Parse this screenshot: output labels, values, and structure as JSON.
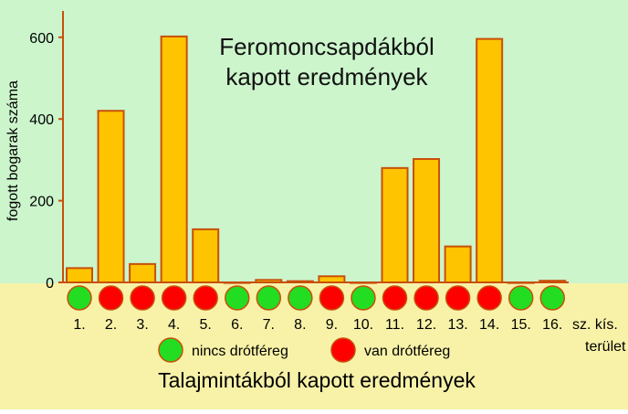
{
  "chart_data": {
    "type": "bar",
    "title": "Feromoncsapdákból\nkapott eredmények",
    "ylabel": "fogott bogarak száma",
    "xlabel": "sz. kís.\nterület",
    "ylim": [
      0,
      650
    ],
    "yticks": [
      0,
      200,
      400,
      600
    ],
    "categories": [
      "1.",
      "2.",
      "3.",
      "4.",
      "5.",
      "6.",
      "7.",
      "8.",
      "9.",
      "10.",
      "11.",
      "12.",
      "13.",
      "14.",
      "15.",
      "16."
    ],
    "values": [
      35,
      420,
      45,
      602,
      130,
      0,
      6,
      3,
      15,
      0,
      280,
      302,
      88,
      596,
      0,
      4
    ],
    "soil_samples": [
      "none",
      "present",
      "present",
      "present",
      "present",
      "none",
      "none",
      "none",
      "present",
      "none",
      "present",
      "present",
      "present",
      "present",
      "none",
      "none"
    ],
    "legend": {
      "none_label": "nincs drótféreg",
      "present_label": "van drótféreg"
    },
    "subtitle": "Talajmintákból kapott eredmények",
    "colors": {
      "upper_bg": "#ccf5cc",
      "lower_bg": "#f8f2a8",
      "bar_fill": "#ffc400",
      "bar_stroke": "#c8500a",
      "axis": "#c8500a",
      "none_dot": "#22dd22",
      "present_dot": "#ff0000",
      "title_text": "#111111"
    }
  }
}
